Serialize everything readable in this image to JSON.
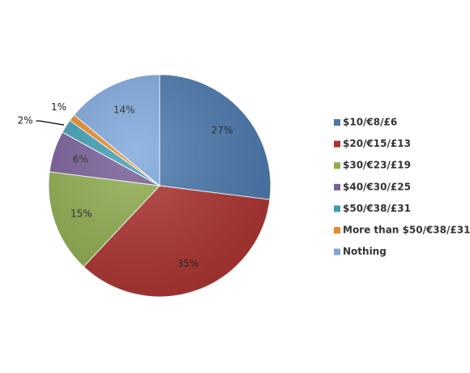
{
  "chart_data": {
    "type": "pie",
    "categories": [
      "$10/€8/£6",
      "$20/€15/£13",
      "$30/€23/£19",
      "$40/€30/£25",
      "$50/€38/£31",
      "More than $50/€38/£31",
      "Nothing"
    ],
    "values": [
      27,
      35,
      15,
      6,
      2,
      1,
      14
    ],
    "value_labels": [
      "27%",
      "35%",
      "15%",
      "6%",
      "2%",
      "1%",
      "14%"
    ],
    "colors": [
      "#4a78ad",
      "#ad3330",
      "#8fad4f",
      "#775e98",
      "#3e9db5",
      "#e88a2c",
      "#7da7dc"
    ],
    "legend": "right"
  }
}
